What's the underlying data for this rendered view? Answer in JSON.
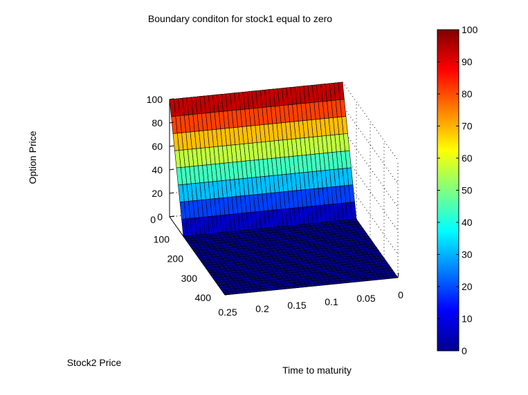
{
  "chart_data": {
    "type": "surface",
    "title": "Boundary conditon for stock1 equal to zero",
    "xlabel": "Time to maturity",
    "ylabel": "Stock2 Price",
    "zlabel": "Option Price",
    "x_ticks": [
      "0",
      "0.05",
      "0.1",
      "0.15",
      "0.2",
      "0.25"
    ],
    "y_ticks": [
      "0",
      "100",
      "200",
      "300",
      "400"
    ],
    "z_ticks": [
      "0",
      "20",
      "40",
      "60",
      "80",
      "100"
    ],
    "xlim": [
      0,
      0.25
    ],
    "ylim": [
      0,
      400
    ],
    "zlim": [
      0,
      100
    ],
    "colorbar_ticks": [
      "0",
      "10",
      "20",
      "30",
      "40",
      "50",
      "60",
      "70",
      "80",
      "90",
      "100"
    ],
    "colormap": "jet",
    "grid": true,
    "surface": {
      "stock2_price": [
        0,
        12.5,
        25,
        37.5,
        50,
        62.5,
        75,
        87.5,
        100,
        112.5,
        125,
        137.5,
        150,
        162.5,
        175,
        187.5,
        200,
        212.5,
        225,
        237.5,
        250,
        262.5,
        275,
        287.5,
        300,
        312.5,
        325,
        337.5,
        350,
        362.5,
        375,
        387.5,
        400
      ],
      "option_price": [
        100,
        87.5,
        75,
        62.5,
        50,
        37.5,
        25,
        12.5,
        0,
        0,
        0,
        0,
        0,
        0,
        0,
        0,
        0,
        0,
        0,
        0,
        0,
        0,
        0,
        0,
        0,
        0,
        0,
        0,
        0,
        0,
        0,
        0,
        0
      ],
      "note_constant_in_time": "same values for every time to maturity 0 to 0.25"
    }
  }
}
